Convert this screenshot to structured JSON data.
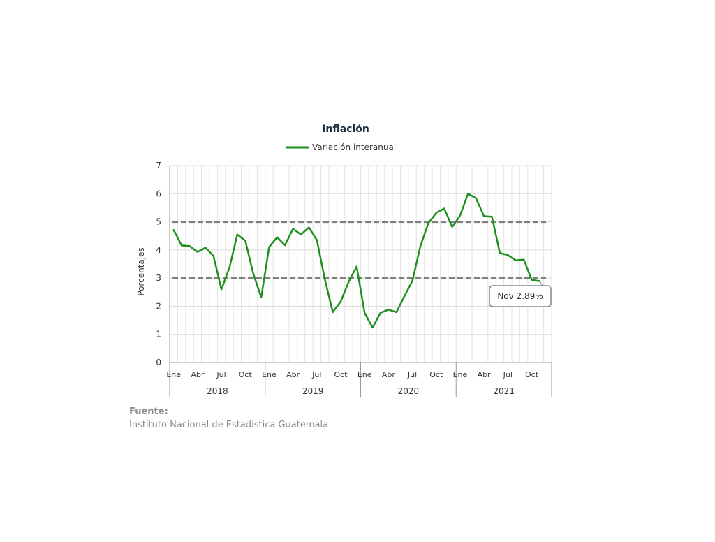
{
  "chart_data": {
    "type": "line",
    "title": "Inflación",
    "ylabel": "Porcentajes",
    "xlabel": "",
    "ylim": [
      0,
      7
    ],
    "yticks": [
      0,
      1,
      2,
      3,
      4,
      5,
      6,
      7
    ],
    "grid": true,
    "legend_position": "top",
    "month_labels": [
      "Ene",
      "",
      "",
      "Abr",
      "",
      "",
      "Jul",
      "",
      "",
      "Oct",
      "",
      ""
    ],
    "years": [
      "2018",
      "2019",
      "2020",
      "2021"
    ],
    "x": [
      "2018-01",
      "2018-02",
      "2018-03",
      "2018-04",
      "2018-05",
      "2018-06",
      "2018-07",
      "2018-08",
      "2018-09",
      "2018-10",
      "2018-11",
      "2018-12",
      "2019-01",
      "2019-02",
      "2019-03",
      "2019-04",
      "2019-05",
      "2019-06",
      "2019-07",
      "2019-08",
      "2019-09",
      "2019-10",
      "2019-11",
      "2019-12",
      "2020-01",
      "2020-02",
      "2020-03",
      "2020-04",
      "2020-05",
      "2020-06",
      "2020-07",
      "2020-08",
      "2020-09",
      "2020-10",
      "2020-11",
      "2020-12",
      "2021-01",
      "2021-02",
      "2021-03",
      "2021-04",
      "2021-05",
      "2021-06",
      "2021-07",
      "2021-08",
      "2021-09",
      "2021-10",
      "2021-11"
    ],
    "series": [
      {
        "name": "Variación interanual",
        "color": "#1f8f1f",
        "values": [
          4.71,
          4.16,
          4.14,
          3.93,
          4.08,
          3.79,
          2.6,
          3.36,
          4.55,
          4.33,
          3.16,
          2.31,
          4.1,
          4.45,
          4.17,
          4.75,
          4.55,
          4.8,
          4.35,
          2.96,
          1.79,
          2.17,
          2.87,
          3.41,
          1.76,
          1.24,
          1.77,
          1.88,
          1.79,
          2.36,
          2.9,
          4.13,
          4.95,
          5.32,
          5.47,
          4.82,
          5.22,
          6.0,
          5.84,
          5.2,
          5.18,
          3.89,
          3.82,
          3.63,
          3.66,
          2.94,
          2.89
        ]
      }
    ],
    "reference_lines": [
      {
        "y": 5,
        "color": "#808080",
        "style": "dashed"
      },
      {
        "y": 3,
        "color": "#808080",
        "style": "dashed"
      }
    ],
    "annotation": {
      "text": "Nov 2.89%",
      "index": 46
    }
  },
  "source": {
    "heading": "Fuente:",
    "text": "Instituto Nacional de Estadística Guatemala"
  }
}
